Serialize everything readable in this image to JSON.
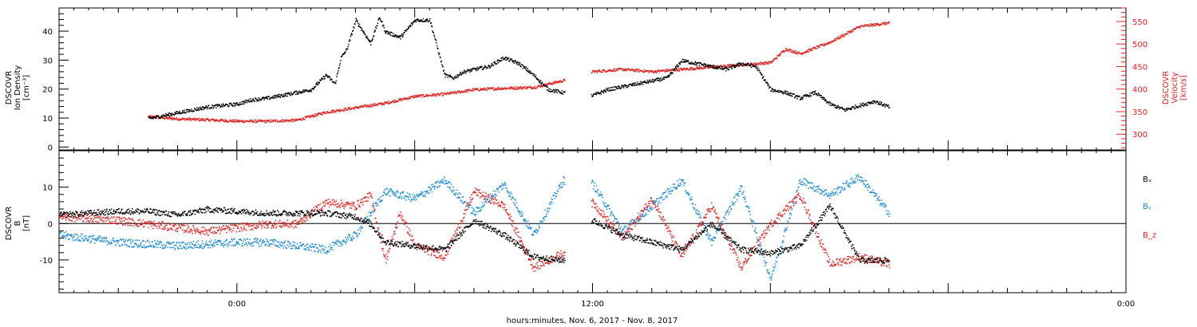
{
  "chart_data": [
    {
      "panel": "top",
      "type": "scatter",
      "xlabel": "hours:minutes, Nov.  6, 2017 - Nov.  8, 2017",
      "x_unit": "hours since 2017-11-06 18:00",
      "xlim": [
        0,
        36
      ],
      "x_tick_labels": [
        {
          "x": 6,
          "label": "0:00"
        },
        {
          "x": 18,
          "label": "12:00"
        },
        {
          "x": 36,
          "label": "0:00"
        }
      ],
      "left_axis": {
        "label_lines": [
          "DSCOVR",
          "Ion Density",
          "[cm⁻³]"
        ],
        "ylim": [
          -1,
          48
        ],
        "ticks": [
          0,
          10,
          20,
          30,
          40
        ]
      },
      "right_axis": {
        "label_lines": [
          "DSCOVR",
          "Velocity",
          "[km/s]"
        ],
        "ylim": [
          265,
          580
        ],
        "ticks": [
          300,
          350,
          400,
          450,
          500,
          550
        ]
      },
      "series": [
        {
          "name": "Ion Density",
          "axis": "left",
          "color": "#000000",
          "x": [
            3.0,
            4.0,
            5.0,
            6.0,
            6.5,
            7.0,
            7.5,
            8.0,
            8.5,
            9.0,
            9.3,
            9.5,
            9.7,
            10.0,
            10.5,
            10.8,
            11.0,
            11.5,
            12.0,
            12.5,
            13.0,
            13.3,
            13.6,
            14.0,
            14.5,
            15.0,
            15.5,
            16.0,
            16.5,
            17.0,
            17.3,
            18.0,
            18.5,
            19.0,
            19.5,
            20.0,
            20.5,
            21.0,
            21.5,
            22.0,
            22.5,
            23.0,
            23.5,
            24.0,
            24.5,
            25.0,
            25.5,
            26.0,
            26.5,
            27.5,
            28.0
          ],
          "y": [
            10,
            12,
            14,
            15,
            16.5,
            17,
            18,
            19,
            20,
            25,
            22,
            31,
            34,
            44,
            36,
            45,
            40,
            38,
            44,
            44,
            25,
            24,
            26,
            27,
            28,
            31,
            29,
            25,
            20,
            19,
            18,
            18,
            20,
            21,
            22,
            23,
            24,
            30,
            29,
            28,
            27,
            29,
            28,
            20,
            19,
            17,
            19,
            15,
            13,
            16,
            14
          ]
        },
        {
          "name": "Velocity",
          "axis": "right",
          "color": "#e0211e",
          "x": [
            3.0,
            4.0,
            5.0,
            6.0,
            7.0,
            8.0,
            9.0,
            10.0,
            11.0,
            12.0,
            13.0,
            14.0,
            15.0,
            16.0,
            17.0,
            18.0,
            19.0,
            20.0,
            21.0,
            22.0,
            23.0,
            24.0,
            24.5,
            25.0,
            26.0,
            27.0,
            28.0
          ],
          "y": [
            340,
            335,
            333,
            330,
            330,
            332,
            350,
            360,
            370,
            385,
            390,
            400,
            403,
            405,
            420,
            440,
            445,
            440,
            445,
            450,
            455,
            460,
            490,
            480,
            505,
            540,
            548
          ]
        }
      ]
    },
    {
      "panel": "bottom",
      "type": "scatter",
      "x_unit": "hours since 2017-11-06 18:00",
      "xlim": [
        0,
        36
      ],
      "left_axis": {
        "label_lines": [
          "DSCOVR",
          "B",
          "[nT]"
        ],
        "ylim": [
          -19,
          20
        ],
        "ticks": [
          -10,
          0,
          10
        ],
        "zero_line": true
      },
      "series": [
        {
          "name": "Bₓ",
          "color": "#000000",
          "x": [
            0,
            1,
            2,
            3,
            4,
            5,
            6,
            7,
            8,
            9,
            10,
            10.5,
            11,
            12,
            13,
            14,
            15,
            16,
            17,
            18,
            19,
            20,
            21,
            22,
            23,
            24,
            25,
            26,
            27,
            28
          ],
          "y": [
            2.5,
            3,
            3.5,
            3.5,
            2.5,
            4,
            3.5,
            3,
            3,
            3,
            2,
            0,
            -5,
            -6,
            -7,
            1,
            -3,
            -9,
            -10,
            1,
            -3,
            -5,
            -7,
            0,
            -7,
            -8,
            -6,
            5,
            -10,
            -10
          ]
        },
        {
          "name": "Bᵧ",
          "color": "#1a87d8",
          "x": [
            0,
            1,
            2,
            3,
            4,
            5,
            6,
            7,
            8,
            9,
            10,
            11,
            12,
            13,
            14,
            15,
            16,
            17,
            18,
            19,
            20,
            21,
            22,
            23,
            24,
            25,
            26,
            27,
            28
          ],
          "y": [
            -3,
            -4,
            -5,
            -5.5,
            -6,
            -5.5,
            -5,
            -5,
            -6,
            -7,
            -3,
            9,
            7,
            12,
            3,
            11,
            -3,
            12,
            11,
            -2,
            5,
            12,
            -5,
            10,
            -15,
            12,
            8,
            13,
            3
          ]
        },
        {
          "name": "B_z",
          "color": "#e0211e",
          "x": [
            0,
            1,
            2,
            3,
            4,
            5,
            6,
            7,
            8,
            9,
            10,
            10.5,
            11,
            11.5,
            12,
            13,
            14,
            15,
            16,
            17,
            18,
            19,
            20,
            21,
            22,
            23,
            24,
            25,
            26,
            27,
            28
          ],
          "y": [
            2,
            1.5,
            1,
            0,
            -1,
            -2,
            -1,
            0,
            0,
            6,
            5,
            8,
            -10,
            3,
            -6,
            -9,
            9,
            5,
            -12,
            -8,
            6,
            -4,
            7,
            -9,
            5,
            -12,
            0,
            8,
            -11,
            -9,
            -11
          ]
        }
      ]
    }
  ]
}
